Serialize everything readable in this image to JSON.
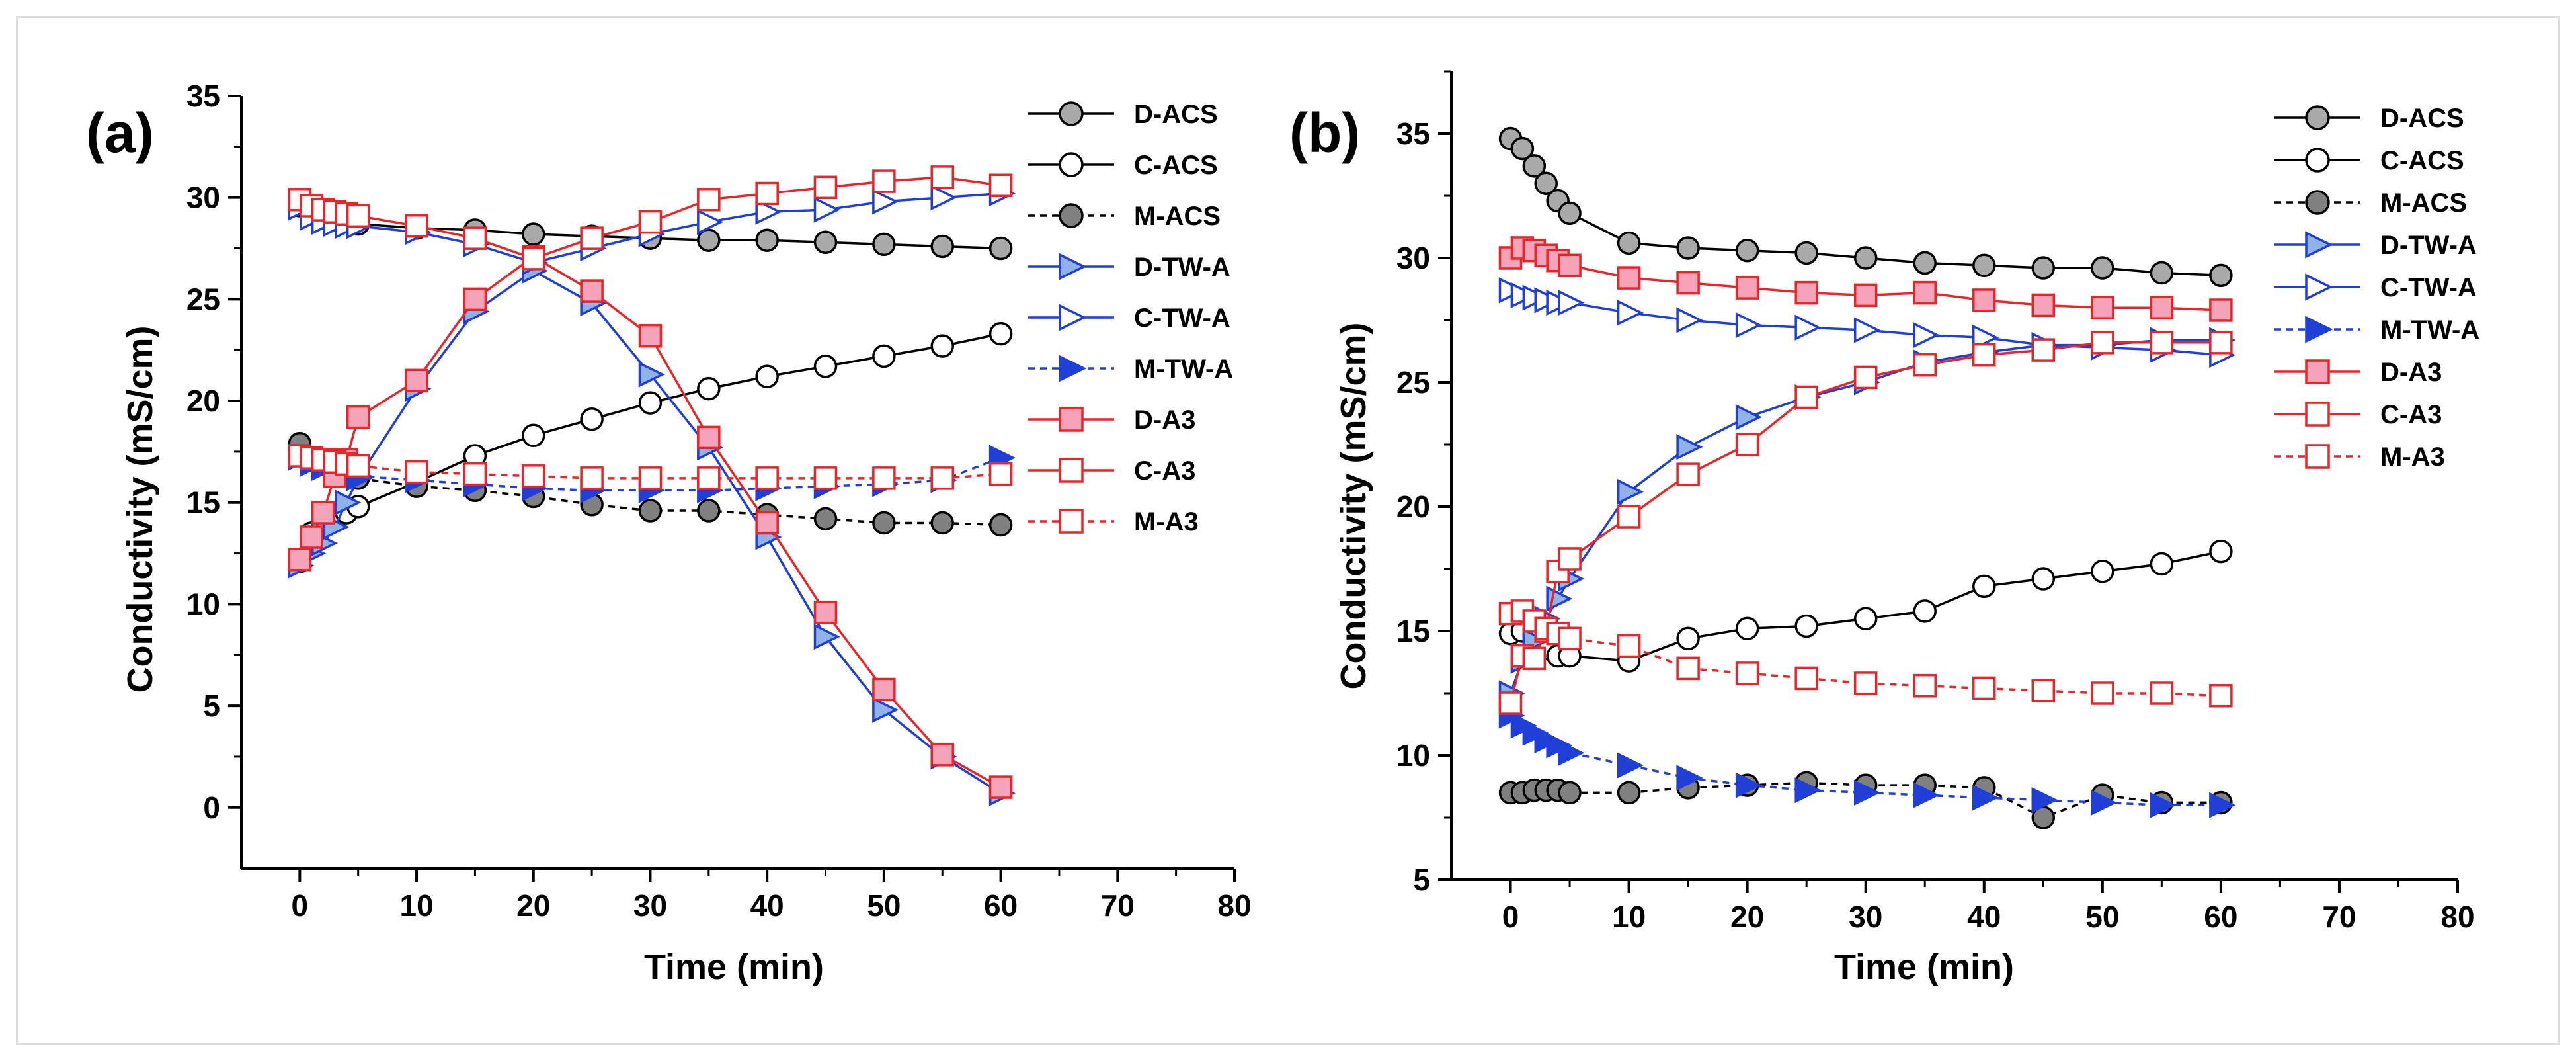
{
  "chart_data": [
    {
      "type": "line",
      "panel_label": "(a)",
      "xlabel": "Time (min)",
      "ylabel": "Conductivity (mS/cm)",
      "xlim": [
        -5,
        80
      ],
      "ylim": [
        -3,
        35
      ],
      "xticks": [
        0,
        10,
        20,
        30,
        40,
        50,
        60,
        70,
        80
      ],
      "yticks": [
        0,
        5,
        10,
        15,
        20,
        25,
        30,
        35
      ],
      "legend_position": "top-right",
      "series": [
        {
          "name": "D-ACS",
          "color": "#000000",
          "marker": "circle",
          "fill": "#a9a9a9",
          "dashed": false,
          "x": [
            0,
            1,
            2,
            3,
            4,
            5,
            10,
            15,
            20,
            25,
            30,
            35,
            40,
            45,
            50,
            55,
            60
          ],
          "y": [
            29.6,
            29.3,
            29.0,
            28.9,
            28.8,
            28.7,
            28.5,
            28.4,
            28.2,
            28.1,
            28.0,
            27.9,
            27.9,
            27.8,
            27.7,
            27.6,
            27.5
          ]
        },
        {
          "name": "C-ACS",
          "color": "#000000",
          "marker": "circle",
          "fill": "#ffffff",
          "dashed": false,
          "x": [
            0,
            1,
            2,
            3,
            4,
            5,
            10,
            15,
            20,
            25,
            30,
            35,
            40,
            45,
            50,
            55,
            60
          ],
          "y": [
            12.1,
            13.5,
            13.9,
            14.2,
            14.5,
            14.8,
            16.0,
            17.3,
            18.3,
            19.1,
            19.9,
            20.6,
            21.2,
            21.7,
            22.2,
            22.7,
            23.3
          ]
        },
        {
          "name": "M-ACS",
          "color": "#000000",
          "marker": "circle",
          "fill": "#808080",
          "dashed": true,
          "x": [
            0,
            1,
            2,
            3,
            4,
            5,
            10,
            15,
            20,
            25,
            30,
            35,
            40,
            45,
            50,
            55,
            60
          ],
          "y": [
            17.9,
            17.2,
            16.9,
            16.6,
            16.4,
            16.2,
            15.8,
            15.6,
            15.3,
            14.9,
            14.6,
            14.6,
            14.4,
            14.2,
            14.0,
            14.0,
            13.9
          ]
        },
        {
          "name": "D-TW-A",
          "color": "#1f3fd6",
          "marker": "triangle",
          "fill": "#8fb2e8",
          "dashed": false,
          "x": [
            0,
            1,
            2,
            3,
            4,
            5,
            10,
            15,
            20,
            25,
            30,
            35,
            40,
            45,
            50,
            55,
            60
          ],
          "y": [
            11.9,
            12.5,
            13.0,
            13.8,
            15.0,
            16.2,
            20.6,
            24.4,
            26.4,
            24.8,
            21.3,
            17.7,
            13.3,
            8.4,
            4.8,
            2.5,
            0.7
          ]
        },
        {
          "name": "C-TW-A",
          "color": "#1f3fd6",
          "marker": "triangle",
          "fill": "#ffffff",
          "dashed": false,
          "x": [
            0,
            1,
            2,
            3,
            4,
            5,
            10,
            15,
            20,
            25,
            30,
            35,
            40,
            45,
            50,
            55,
            60
          ],
          "y": [
            29.5,
            29.0,
            28.8,
            28.7,
            28.6,
            28.6,
            28.3,
            27.7,
            26.8,
            27.5,
            28.2,
            28.8,
            29.3,
            29.4,
            29.8,
            30.0,
            30.2
          ]
        },
        {
          "name": "M-TW-A",
          "color": "#1f3fd6",
          "marker": "triangle",
          "fill": "#1f3fd6",
          "dashed": true,
          "x": [
            0,
            1,
            2,
            3,
            4,
            5,
            10,
            15,
            20,
            25,
            30,
            35,
            40,
            45,
            50,
            55,
            60
          ],
          "y": [
            17.2,
            16.9,
            16.7,
            16.6,
            16.4,
            16.3,
            16.1,
            15.9,
            15.7,
            15.6,
            15.6,
            15.6,
            15.7,
            15.8,
            15.9,
            16.1,
            17.2
          ]
        },
        {
          "name": "D-A3",
          "color": "#e8262a",
          "marker": "square",
          "fill": "#f4a3b8",
          "dashed": false,
          "x": [
            0,
            1,
            2,
            3,
            4,
            5,
            10,
            15,
            20,
            25,
            30,
            35,
            40,
            45,
            50,
            55,
            60
          ],
          "y": [
            12.2,
            13.3,
            14.5,
            16.3,
            17.1,
            19.2,
            21.0,
            25.0,
            27.1,
            25.4,
            23.2,
            18.2,
            14.0,
            9.6,
            5.8,
            2.6,
            1.0
          ]
        },
        {
          "name": "C-A3",
          "color": "#e8262a",
          "marker": "square",
          "fill": "#ffffff",
          "dashed": false,
          "x": [
            0,
            1,
            2,
            3,
            4,
            5,
            10,
            15,
            20,
            25,
            30,
            35,
            40,
            45,
            50,
            55,
            60
          ],
          "y": [
            29.9,
            29.6,
            29.4,
            29.3,
            29.2,
            29.1,
            28.6,
            28.0,
            27.0,
            28.0,
            28.8,
            29.9,
            30.2,
            30.5,
            30.8,
            31.0,
            30.6
          ]
        },
        {
          "name": "M-A3",
          "color": "#e8262a",
          "marker": "square",
          "fill": "#ffffff",
          "dashed": true,
          "x": [
            0,
            1,
            2,
            3,
            4,
            5,
            10,
            15,
            20,
            25,
            30,
            35,
            40,
            45,
            50,
            55,
            60
          ],
          "y": [
            17.3,
            17.2,
            17.1,
            17.0,
            16.9,
            16.8,
            16.5,
            16.4,
            16.3,
            16.2,
            16.2,
            16.2,
            16.2,
            16.2,
            16.2,
            16.2,
            16.4
          ]
        }
      ]
    },
    {
      "type": "line",
      "panel_label": "(b)",
      "xlabel": "Time (min)",
      "ylabel": "Conductivity (mS/cm)",
      "xlim": [
        -5,
        80
      ],
      "ylim": [
        5,
        37.5
      ],
      "xticks": [
        0,
        10,
        20,
        30,
        40,
        50,
        60,
        70,
        80
      ],
      "yticks": [
        5,
        10,
        15,
        20,
        25,
        30,
        35
      ],
      "legend_position": "top-right",
      "series": [
        {
          "name": "D-ACS",
          "color": "#000000",
          "marker": "circle",
          "fill": "#a9a9a9",
          "dashed": false,
          "x": [
            0,
            1,
            2,
            3,
            4,
            5,
            10,
            15,
            20,
            25,
            30,
            35,
            40,
            45,
            50,
            55,
            60
          ],
          "y": [
            34.8,
            34.4,
            33.7,
            33.0,
            32.3,
            31.8,
            30.6,
            30.4,
            30.3,
            30.2,
            30.0,
            29.8,
            29.7,
            29.6,
            29.6,
            29.4,
            29.3
          ]
        },
        {
          "name": "C-ACS",
          "color": "#000000",
          "marker": "circle",
          "fill": "#ffffff",
          "dashed": false,
          "x": [
            0,
            1,
            2,
            3,
            4,
            5,
            10,
            15,
            20,
            25,
            30,
            35,
            40,
            45,
            50,
            55,
            60
          ],
          "y": [
            14.9,
            15.0,
            14.8,
            14.3,
            14.0,
            14.0,
            13.8,
            14.7,
            15.1,
            15.2,
            15.5,
            15.8,
            16.8,
            17.1,
            17.4,
            17.7,
            18.2
          ]
        },
        {
          "name": "M-ACS",
          "color": "#000000",
          "marker": "circle",
          "fill": "#808080",
          "dashed": true,
          "x": [
            0,
            1,
            2,
            3,
            4,
            5,
            10,
            15,
            20,
            25,
            30,
            35,
            40,
            45,
            50,
            55,
            60
          ],
          "y": [
            8.5,
            8.5,
            8.6,
            8.6,
            8.6,
            8.5,
            8.5,
            8.7,
            8.8,
            8.9,
            8.8,
            8.8,
            8.7,
            7.5,
            8.4,
            8.1,
            8.1
          ]
        },
        {
          "name": "D-TW-A",
          "color": "#1f3fd6",
          "marker": "triangle",
          "fill": "#8fb2e8",
          "dashed": false,
          "x": [
            0,
            1,
            2,
            3,
            4,
            5,
            10,
            15,
            20,
            25,
            30,
            35,
            40,
            45,
            50,
            55,
            60
          ],
          "y": [
            12.5,
            13.8,
            14.6,
            15.5,
            16.3,
            17.1,
            20.6,
            22.4,
            23.6,
            24.4,
            25.0,
            25.8,
            26.2,
            26.5,
            26.5,
            26.7,
            26.7
          ]
        },
        {
          "name": "C-TW-A",
          "color": "#1f3fd6",
          "marker": "triangle",
          "fill": "#ffffff",
          "dashed": false,
          "x": [
            0,
            1,
            2,
            3,
            4,
            5,
            10,
            15,
            20,
            25,
            30,
            35,
            40,
            45,
            50,
            55,
            60
          ],
          "y": [
            28.7,
            28.5,
            28.4,
            28.3,
            28.2,
            28.2,
            27.8,
            27.5,
            27.3,
            27.2,
            27.1,
            26.9,
            26.8,
            26.5,
            26.4,
            26.3,
            26.1
          ]
        },
        {
          "name": "M-TW-A",
          "color": "#1f3fd6",
          "marker": "triangle",
          "fill": "#1f3fd6",
          "dashed": true,
          "x": [
            0,
            1,
            2,
            3,
            4,
            5,
            10,
            15,
            20,
            25,
            30,
            35,
            40,
            45,
            50,
            55,
            60
          ],
          "y": [
            11.6,
            11.2,
            10.9,
            10.6,
            10.4,
            10.1,
            9.6,
            9.1,
            8.8,
            8.6,
            8.5,
            8.4,
            8.3,
            8.2,
            8.1,
            8.0,
            8.0
          ]
        },
        {
          "name": "D-A3",
          "color": "#e8262a",
          "marker": "square",
          "fill": "#f4a3b8",
          "dashed": false,
          "x": [
            0,
            1,
            2,
            3,
            4,
            5,
            10,
            15,
            20,
            25,
            30,
            35,
            40,
            45,
            50,
            55,
            60
          ],
          "y": [
            30.0,
            30.4,
            30.3,
            30.1,
            29.9,
            29.7,
            29.2,
            29.0,
            28.8,
            28.6,
            28.5,
            28.6,
            28.3,
            28.1,
            28.0,
            28.0,
            27.9
          ]
        },
        {
          "name": "C-A3",
          "color": "#e8262a",
          "marker": "square",
          "fill": "#ffffff",
          "dashed": false,
          "x": [
            0,
            1,
            2,
            3,
            4,
            5,
            10,
            15,
            20,
            25,
            30,
            35,
            40,
            45,
            50,
            55,
            60
          ],
          "y": [
            12.1,
            14.0,
            13.9,
            15.0,
            17.4,
            17.9,
            19.6,
            21.3,
            22.5,
            24.4,
            25.2,
            25.7,
            26.1,
            26.3,
            26.6,
            26.6,
            26.6
          ]
        },
        {
          "name": "M-A3",
          "color": "#e8262a",
          "marker": "square",
          "fill": "#ffffff",
          "dashed": true,
          "x": [
            0,
            1,
            2,
            3,
            4,
            5,
            10,
            15,
            20,
            25,
            30,
            35,
            40,
            45,
            50,
            55,
            60
          ],
          "y": [
            15.7,
            15.8,
            15.4,
            15.1,
            14.9,
            14.7,
            14.4,
            13.5,
            13.3,
            13.1,
            12.9,
            12.8,
            12.7,
            12.6,
            12.5,
            12.5,
            12.4
          ]
        }
      ]
    }
  ]
}
